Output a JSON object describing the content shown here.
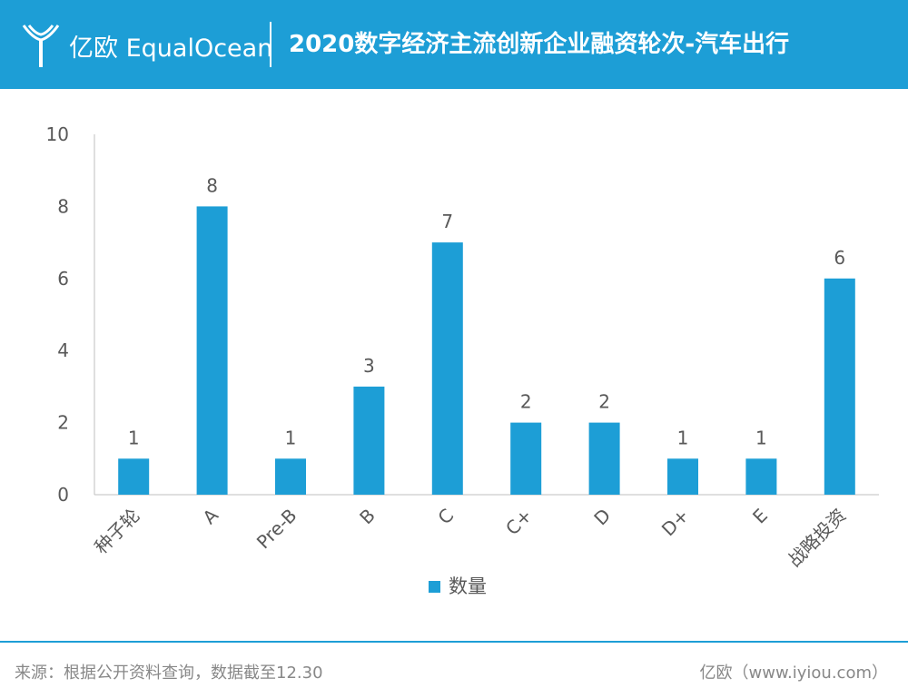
{
  "header": {
    "brand": "亿欧 EqualOcean",
    "title": "2020数字经济主流创新企业融资轮次-汽车出行"
  },
  "footer": {
    "source": "来源：根据公开资料查询，数据截至12.30",
    "credit": "亿欧（www.iyiou.com）"
  },
  "colors": {
    "accent": "#1d9ed6",
    "bar": "#1d9ed6",
    "axis_text": "#595959"
  },
  "chart_data": {
    "type": "bar",
    "categories": [
      "种子轮",
      "A",
      "Pre-B",
      "B",
      "C",
      "C+",
      "D",
      "D+",
      "E",
      "战略投资"
    ],
    "series": [
      {
        "name": "数量",
        "values": [
          1,
          8,
          1,
          3,
          7,
          2,
          2,
          1,
          1,
          6
        ]
      }
    ],
    "ylim": [
      0,
      10
    ],
    "yticks": [
      0,
      2,
      4,
      6,
      8,
      10
    ],
    "legend": "bottom-center",
    "grid": false,
    "data_labels": true
  }
}
